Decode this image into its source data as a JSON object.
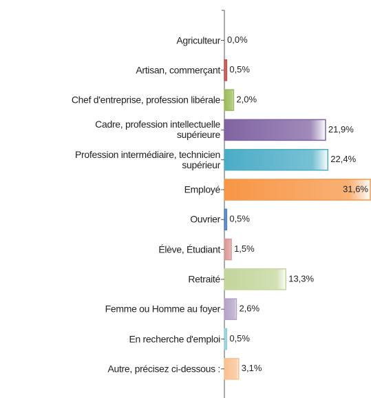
{
  "chart_data": {
    "type": "barh",
    "categories": [
      "Agriculteur",
      "Artisan, commerçant",
      "Chef d'entreprise, profession libérale",
      "Cadre, profession intellectuelle\nsupérieure",
      "Profession intermédiaire, technicien\nsupérieur",
      "Employé",
      "Ouvrier",
      "Élève, Étudiant",
      "Retraité",
      "Femme ou Homme au foyer",
      "En recherche d'emploi",
      "Autre, précisez ci-dessous :"
    ],
    "values": [
      0.0,
      0.5,
      2.0,
      21.9,
      22.4,
      31.6,
      0.5,
      1.5,
      13.3,
      2.6,
      0.5,
      3.1
    ],
    "value_labels": [
      "0,0%",
      "0,5%",
      "2,0%",
      "21,9%",
      "22,4%",
      "31,6%",
      "0,5%",
      "1,5%",
      "13,3%",
      "2,6%",
      "0,5%",
      "3,1%"
    ],
    "colors": [
      "#4f81bd",
      "#c0504d",
      "#9bbb59",
      "#8064a2",
      "#4bacc6",
      "#f79646",
      "#4f81bd",
      "#d99694",
      "#c3d69b",
      "#b3a2c7",
      "#93cddd",
      "#fac090"
    ]
  }
}
